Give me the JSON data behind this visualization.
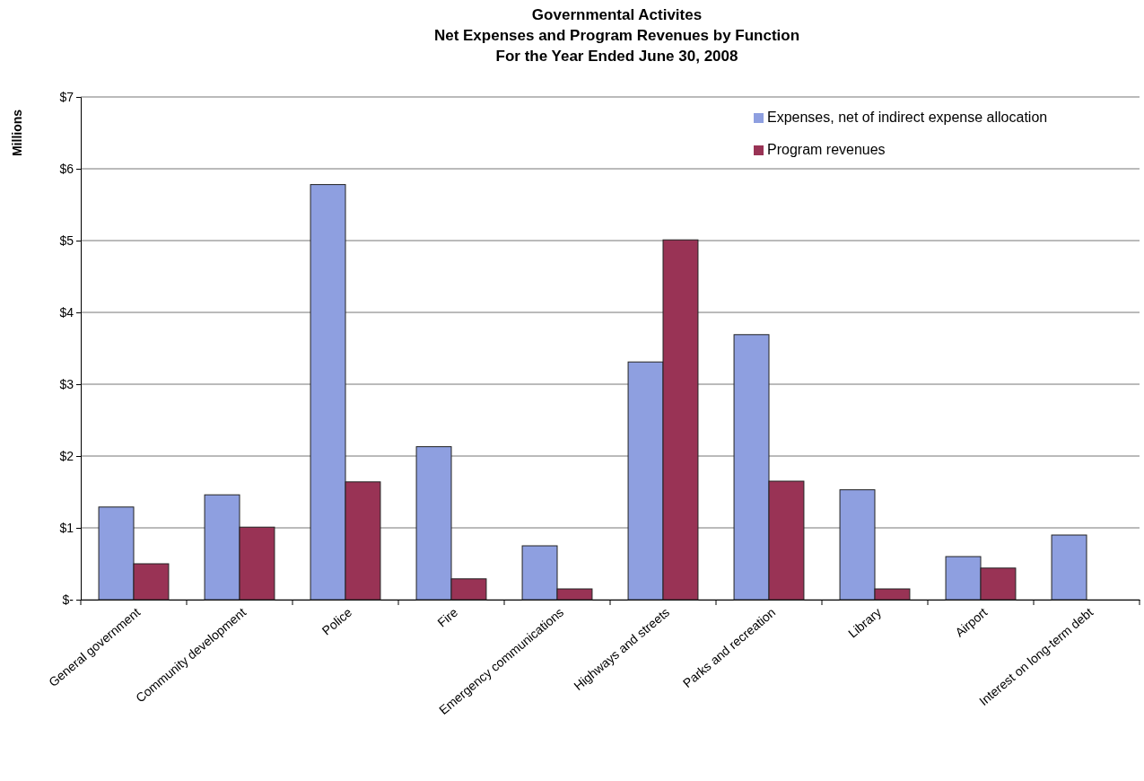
{
  "chart_data": {
    "type": "bar",
    "title": "Governmental Activites",
    "subtitle": "Net Expenses and Program Revenues by Function\nFor the Year Ended June 30, 2008",
    "ylabel": "Millions",
    "categories": [
      "General government",
      "Community development",
      "Police",
      "Fire",
      "Emergency communications",
      "Highways and streets",
      "Parks and recreation",
      "Library",
      "Airport",
      "Interest on long-term debt"
    ],
    "series": [
      {
        "name": "Expenses, net of indirect expense allocation",
        "color": "#8e9fe0",
        "values": [
          1.29,
          1.46,
          5.78,
          2.13,
          0.75,
          3.31,
          3.69,
          1.53,
          0.6,
          0.9
        ]
      },
      {
        "name": "Program revenues",
        "color": "#993355",
        "values": [
          0.5,
          1.01,
          1.64,
          0.29,
          0.15,
          5.01,
          1.65,
          0.15,
          0.44,
          0
        ]
      }
    ],
    "ylim": [
      0,
      7
    ],
    "yticks": [
      {
        "value": 0,
        "label": "$-"
      },
      {
        "value": 1,
        "label": "$1"
      },
      {
        "value": 2,
        "label": "$2"
      },
      {
        "value": 3,
        "label": "$3"
      },
      {
        "value": 4,
        "label": "$4"
      },
      {
        "value": 5,
        "label": "$5"
      },
      {
        "value": 6,
        "label": "$6"
      },
      {
        "value": 7,
        "label": "$7"
      }
    ],
    "grid": "y",
    "legend": "top right"
  }
}
